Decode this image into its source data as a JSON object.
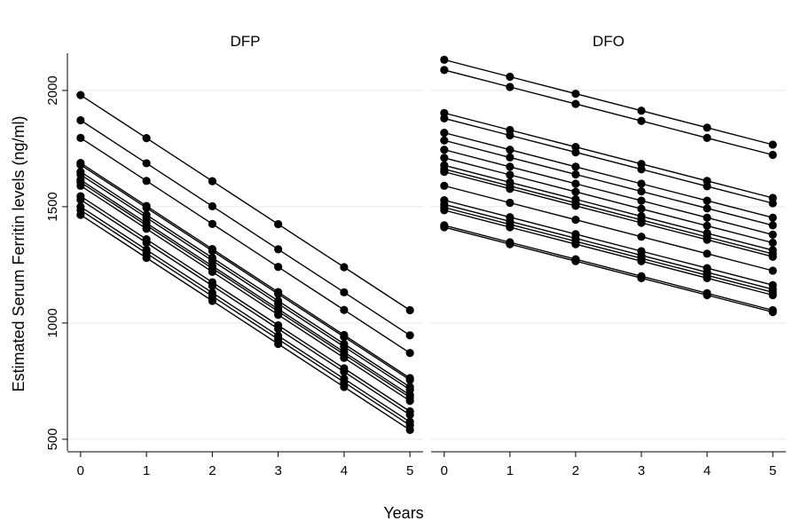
{
  "chart_data": {
    "type": "line",
    "xlabel": "Years",
    "ylabel": "Estimated Serum Ferritin levels (ng/ml)",
    "x": [
      0,
      1,
      2,
      3,
      4,
      5
    ],
    "xticks": [
      "0",
      "1",
      "2",
      "3",
      "4",
      "5"
    ],
    "yticks": [
      "500",
      "1000",
      "1500",
      "2000"
    ],
    "ylim": [
      450,
      2160
    ],
    "xlim": [
      -0.2,
      5.2
    ],
    "grid": true,
    "panels": [
      {
        "title": "DFP",
        "series": [
          {
            "values": [
              1980,
              1795,
              1610,
              1425,
              1240,
              1055
            ]
          },
          {
            "values": [
              1872,
              1687,
              1502,
              1317,
              1132,
              947
            ]
          },
          {
            "values": [
              1796,
              1611,
              1426,
              1241,
              1056,
              871
            ]
          },
          {
            "values": [
              1688,
              1503,
              1318,
              1133,
              948,
              763
            ]
          },
          {
            "values": [
              1680,
              1495,
              1310,
              1125,
              940,
              755
            ]
          },
          {
            "values": [
              1650,
              1465,
              1280,
              1095,
              910,
              725
            ]
          },
          {
            "values": [
              1638,
              1453,
              1268,
              1083,
              898,
              713
            ]
          },
          {
            "values": [
              1615,
              1430,
              1245,
              1060,
              875,
              690
            ]
          },
          {
            "values": [
              1605,
              1420,
              1235,
              1050,
              865,
              680
            ]
          },
          {
            "values": [
              1590,
              1405,
              1220,
              1035,
              850,
              665
            ]
          },
          {
            "values": [
              1545,
              1360,
              1175,
              990,
              805,
              620
            ]
          },
          {
            "values": [
              1530,
              1345,
              1160,
              975,
              790,
              605
            ]
          },
          {
            "values": [
              1500,
              1315,
              1130,
              945,
              760,
              575
            ]
          },
          {
            "values": [
              1485,
              1300,
              1115,
              930,
              745,
              560
            ]
          },
          {
            "values": [
              1465,
              1280,
              1095,
              910,
              725,
              540
            ]
          }
        ]
      },
      {
        "title": "DFO",
        "series": [
          {
            "values": [
              2132,
              2059,
              1986,
              1913,
              1840,
              1767
            ]
          },
          {
            "values": [
              2088,
              2015,
              1942,
              1869,
              1796,
              1723
            ]
          },
          {
            "values": [
              1903,
              1830,
              1757,
              1684,
              1611,
              1538
            ]
          },
          {
            "values": [
              1880,
              1807,
              1734,
              1661,
              1588,
              1515
            ]
          },
          {
            "values": [
              1818,
              1745,
              1672,
              1599,
              1526,
              1453
            ]
          },
          {
            "values": [
              1785,
              1712,
              1639,
              1566,
              1493,
              1420
            ]
          },
          {
            "values": [
              1745,
              1672,
              1599,
              1526,
              1453,
              1380
            ]
          },
          {
            "values": [
              1710,
              1637,
              1564,
              1491,
              1418,
              1345
            ]
          },
          {
            "values": [
              1678,
              1605,
              1532,
              1459,
              1386,
              1313
            ]
          },
          {
            "values": [
              1662,
              1589,
              1516,
              1443,
              1370,
              1297
            ]
          },
          {
            "values": [
              1650,
              1577,
              1504,
              1431,
              1358,
              1285
            ]
          },
          {
            "values": [
              1590,
              1517,
              1444,
              1371,
              1298,
              1225
            ]
          },
          {
            "values": [
              1528,
              1455,
              1382,
              1309,
              1236,
              1163
            ]
          },
          {
            "values": [
              1510,
              1437,
              1364,
              1291,
              1218,
              1145
            ]
          },
          {
            "values": [
              1497,
              1424,
              1351,
              1278,
              1205,
              1132
            ]
          },
          {
            "values": [
              1485,
              1412,
              1339,
              1266,
              1193,
              1120
            ]
          },
          {
            "values": [
              1420,
              1347,
              1274,
              1201,
              1128,
              1055
            ]
          },
          {
            "values": [
              1412,
              1339,
              1266,
              1193,
              1120,
              1047
            ]
          }
        ]
      }
    ]
  }
}
